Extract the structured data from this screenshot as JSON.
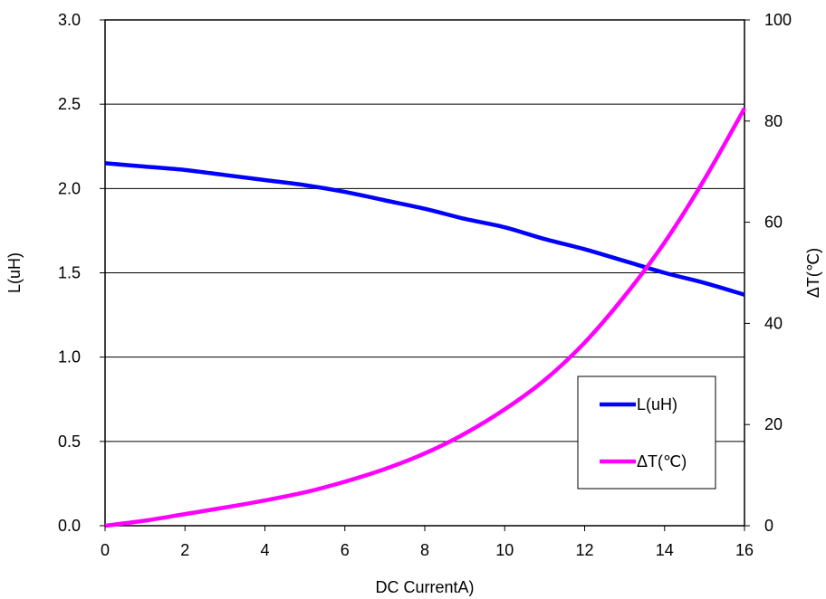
{
  "chart_data": {
    "type": "line",
    "title": "",
    "xlabel": "DC CurrentA)",
    "ylabel": "L(uH)",
    "y2label": "ΔT(℃)",
    "xlim": [
      0,
      16
    ],
    "ylim": [
      0,
      3.0
    ],
    "y2lim": [
      0,
      100
    ],
    "x_ticks": [
      "0",
      "2",
      "4",
      "6",
      "8",
      "10",
      "12",
      "14",
      "16"
    ],
    "y_ticks": [
      "0.0",
      "0.5",
      "1.0",
      "1.5",
      "2.0",
      "2.5",
      "3.0"
    ],
    "y2_ticks": [
      "0",
      "20",
      "40",
      "60",
      "80",
      "100"
    ],
    "grid": "horizontal",
    "legend_position": "bottom-right",
    "series": [
      {
        "name": "L(uH)",
        "axis": "left",
        "color": "#0000FF",
        "x": [
          0,
          1,
          2,
          3,
          4,
          5,
          6,
          7,
          8,
          9,
          10,
          11,
          12,
          13,
          14,
          15,
          16
        ],
        "y": [
          2.15,
          2.13,
          2.11,
          2.08,
          2.05,
          2.02,
          1.98,
          1.93,
          1.88,
          1.82,
          1.77,
          1.7,
          1.64,
          1.57,
          1.5,
          1.44,
          1.37
        ]
      },
      {
        "name": "ΔT(℃)",
        "axis": "right",
        "color": "#FF00FF",
        "x": [
          0,
          1,
          2,
          3,
          4,
          5,
          6,
          7,
          8,
          9,
          10,
          11,
          12,
          13,
          14,
          15,
          16
        ],
        "y": [
          0,
          1.0,
          2.3,
          3.6,
          5.0,
          6.6,
          8.7,
          11.2,
          14.3,
          18.2,
          23.0,
          28.8,
          36.2,
          45.4,
          56.0,
          68.5,
          82.5
        ]
      }
    ]
  }
}
